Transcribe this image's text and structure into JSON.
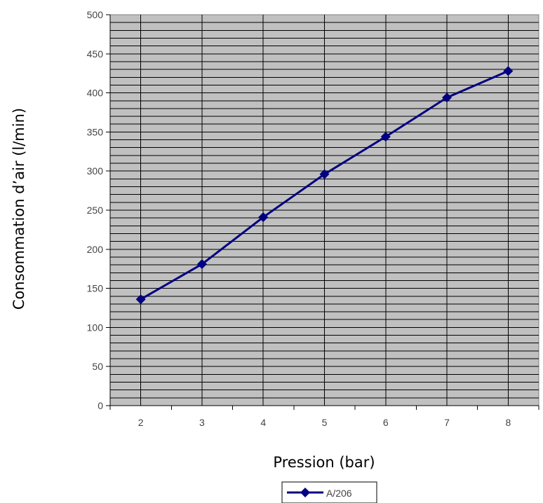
{
  "chart_data": {
    "type": "line",
    "title": "",
    "xlabel": "Pression (bar)",
    "ylabel": "Consommation d’air (l/min)",
    "categories": [
      "2",
      "3",
      "4",
      "5",
      "6",
      "7",
      "8"
    ],
    "ylim": [
      0,
      500
    ],
    "yticks": [
      "0",
      "50",
      "100",
      "150",
      "200",
      "250",
      "300",
      "350",
      "400",
      "450",
      "500"
    ],
    "grid": true,
    "legend_position": "bottom",
    "series": [
      {
        "name": "A/206",
        "values": [
          136,
          181,
          241,
          296,
          344,
          394,
          428
        ]
      }
    ]
  },
  "colors": {
    "plot_background": "#c0c0c0",
    "gridline": "#000000",
    "series_line": "#000080"
  }
}
